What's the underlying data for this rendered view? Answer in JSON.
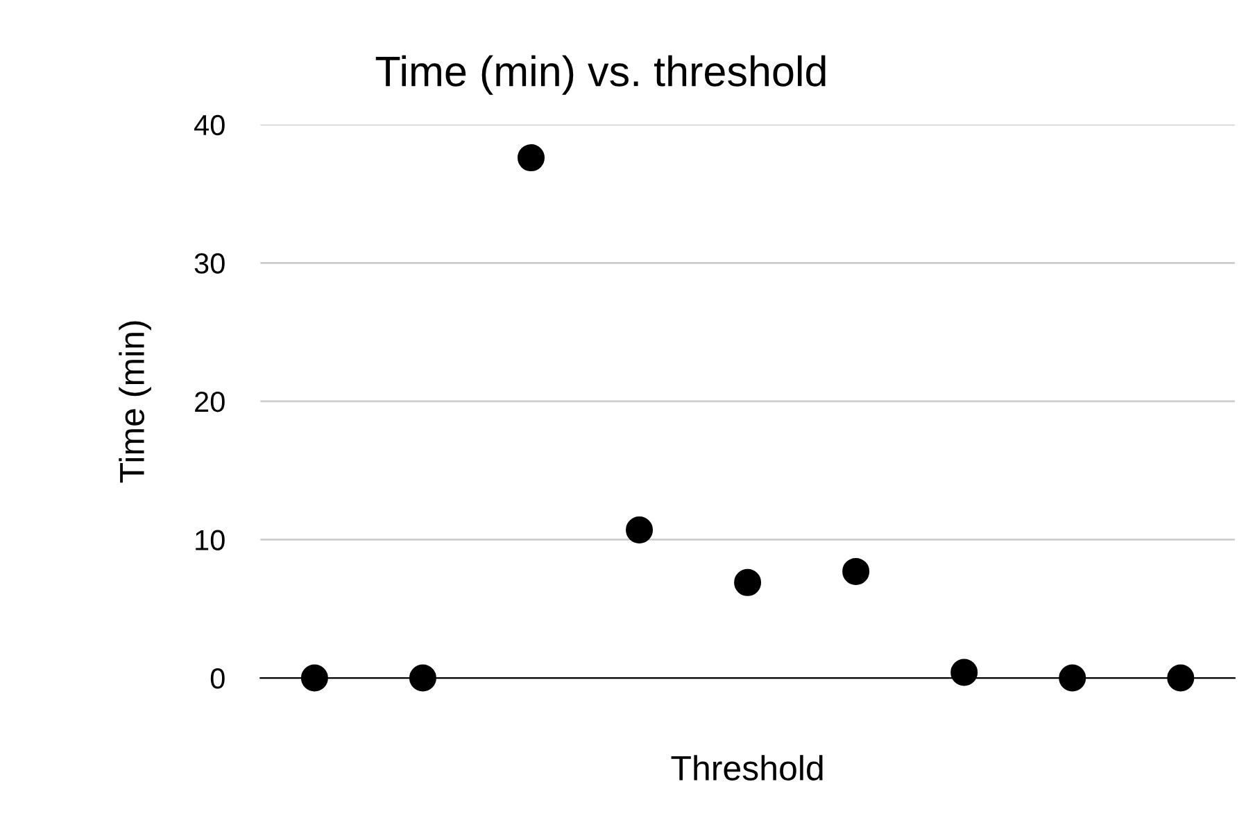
{
  "chart_data": {
    "type": "scatter",
    "title": "Time (min) vs. threshold",
    "xlabel": "Threshold",
    "ylabel": "Time (min)",
    "categories": [
      null,
      null,
      null,
      null,
      null,
      null,
      null,
      null,
      null
    ],
    "series": [
      {
        "color": "#000000",
        "values": [
          0,
          0,
          37.6,
          10.7,
          6.9,
          7.7,
          0.4,
          0,
          0
        ]
      }
    ],
    "ylim": [
      0,
      40
    ],
    "yticks": [
      0,
      10,
      20,
      30,
      40
    ],
    "grid": "y",
    "marker": "circle",
    "tick_labels": "y"
  }
}
